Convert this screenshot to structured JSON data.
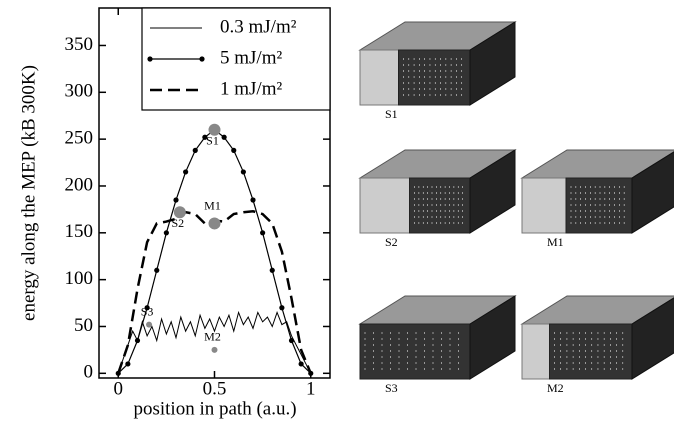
{
  "chart_data": {
    "type": "line",
    "x_label": "position in path (a.u.)",
    "y_label": "energy along the MEP (kB 300K)",
    "xlim": [
      -0.1,
      1.1
    ],
    "xticks": [
      0,
      0.5,
      1
    ],
    "ylim": [
      -5,
      390
    ],
    "yticks": [
      0,
      50,
      100,
      150,
      200,
      250,
      300,
      350
    ],
    "legend": "upper right",
    "series": [
      {
        "name": "0.3 mJ/m²",
        "color": "#000000",
        "line_style": "solid",
        "line_width": 1,
        "markers": false,
        "x": [
          0,
          0.025,
          0.05,
          0.075,
          0.1,
          0.125,
          0.15,
          0.175,
          0.2,
          0.225,
          0.25,
          0.275,
          0.3,
          0.325,
          0.35,
          0.375,
          0.4,
          0.425,
          0.45,
          0.475,
          0.5,
          0.525,
          0.55,
          0.575,
          0.6,
          0.625,
          0.65,
          0.675,
          0.7,
          0.725,
          0.75,
          0.775,
          0.8,
          0.825,
          0.85,
          0.875,
          0.9,
          0.925,
          0.95,
          0.975,
          1
        ],
        "values": [
          0,
          15,
          30,
          45,
          35,
          55,
          40,
          50,
          35,
          58,
          42,
          55,
          38,
          60,
          45,
          55,
          40,
          62,
          48,
          58,
          45,
          60,
          50,
          62,
          45,
          65,
          52,
          60,
          48,
          65,
          55,
          60,
          50,
          65,
          52,
          55,
          40,
          30,
          20,
          10,
          0
        ]
      },
      {
        "name": "5 mJ/m²",
        "color": "#000000",
        "line_style": "solid",
        "line_width": 1.2,
        "markers": true,
        "x": [
          0,
          0.05,
          0.1,
          0.15,
          0.2,
          0.25,
          0.3,
          0.35,
          0.4,
          0.45,
          0.5,
          0.55,
          0.6,
          0.65,
          0.7,
          0.75,
          0.8,
          0.85,
          0.9,
          0.95,
          1
        ],
        "values": [
          0,
          10,
          35,
          70,
          110,
          150,
          185,
          215,
          238,
          252,
          260,
          252,
          238,
          215,
          185,
          150,
          110,
          70,
          35,
          10,
          0
        ]
      },
      {
        "name": "1 mJ/m²",
        "color": "#000000",
        "line_style": "dashed",
        "line_width": 2.5,
        "markers": false,
        "x": [
          0,
          0.05,
          0.1,
          0.15,
          0.2,
          0.25,
          0.3,
          0.35,
          0.4,
          0.45,
          0.5,
          0.55,
          0.6,
          0.65,
          0.7,
          0.75,
          0.8,
          0.85,
          0.9,
          0.95,
          1
        ],
        "values": [
          0,
          30,
          90,
          140,
          160,
          162,
          165,
          172,
          170,
          160,
          163,
          162,
          170,
          172,
          173,
          170,
          160,
          130,
          80,
          25,
          0
        ]
      }
    ],
    "annotations": [
      {
        "text": "S1",
        "x": 0.5,
        "y": 260,
        "size": 6
      },
      {
        "text": "S2",
        "x": 0.32,
        "y": 172,
        "size": 6
      },
      {
        "text": "M1",
        "x": 0.5,
        "y": 160,
        "size": 6
      },
      {
        "text": "S3",
        "x": 0.16,
        "y": 52,
        "size": 3
      },
      {
        "text": "M2",
        "x": 0.5,
        "y": 25,
        "size": 3
      }
    ]
  },
  "panels": [
    {
      "label": "S1"
    },
    {
      "label": "S2"
    },
    {
      "label": "M1"
    },
    {
      "label": "S3"
    },
    {
      "label": "M2"
    }
  ]
}
